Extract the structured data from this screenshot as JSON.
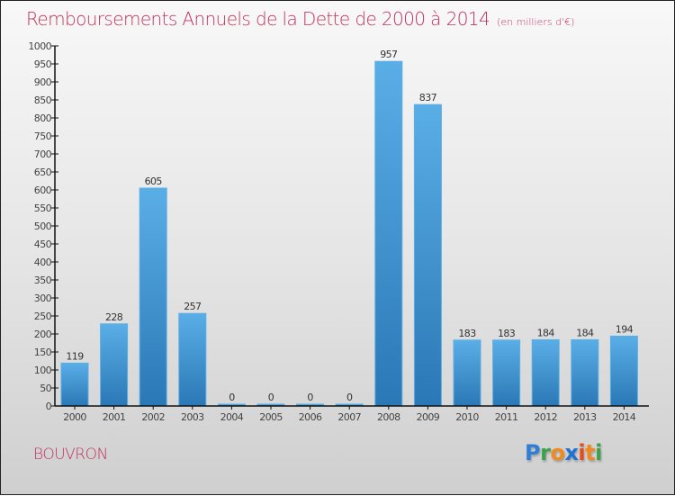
{
  "chart_data": {
    "type": "bar",
    "title": "Remboursements Annuels de la Dette de 2000 à 2014",
    "unit_note": "(en milliers d'€)",
    "xlabel": "",
    "ylabel": "",
    "categories": [
      "2000",
      "2001",
      "2002",
      "2003",
      "2004",
      "2005",
      "2006",
      "2007",
      "2008",
      "2009",
      "2010",
      "2011",
      "2012",
      "2013",
      "2014"
    ],
    "values": [
      119,
      228,
      605,
      257,
      0,
      0,
      0,
      0,
      957,
      837,
      183,
      183,
      184,
      184,
      194
    ],
    "ylim": [
      0,
      1000
    ],
    "yticks": [
      0,
      50,
      100,
      150,
      200,
      250,
      300,
      350,
      400,
      450,
      500,
      550,
      600,
      650,
      700,
      750,
      800,
      850,
      900,
      950,
      1000
    ],
    "grid": false,
    "legend": "none",
    "bar_color_top": "#5aaee6",
    "bar_color_bottom": "#2a78b6"
  },
  "footer": {
    "commune": "BOUVRON",
    "logo": {
      "letters": [
        {
          "char": "P",
          "color": "#2f7fd6"
        },
        {
          "char": "r",
          "color": "#3aa24a"
        },
        {
          "char": "o",
          "color": "#f08a1c"
        },
        {
          "char": "x",
          "color": "#1f73d1"
        },
        {
          "char": "i",
          "color": "#e8491d"
        },
        {
          "char": "t",
          "color": "#f08a1c"
        },
        {
          "char": "i",
          "color": "#3aa24a"
        }
      ]
    }
  },
  "colors": {
    "title": "#c0345f",
    "axis": "#111111"
  }
}
